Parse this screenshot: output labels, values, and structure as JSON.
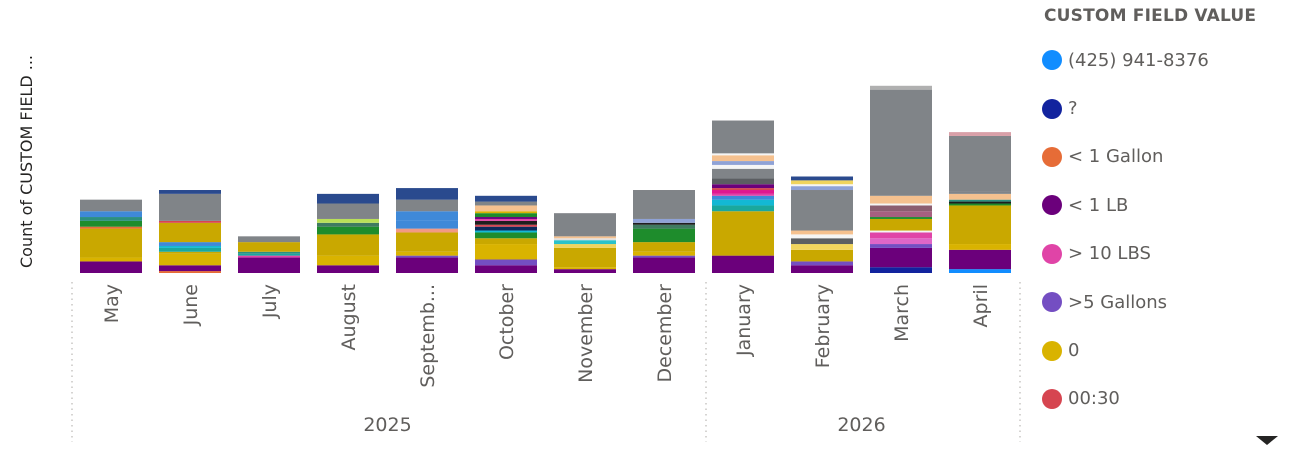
{
  "chart_data": {
    "type": "bar",
    "stacked": true,
    "ylabel": "Count of CUSTOM FIELD ...",
    "y_axis_labels_visible": false,
    "ylim": [
      0,
      100
    ],
    "gridlines": false,
    "categories": [
      "May",
      "June",
      "July",
      "August",
      "Septemb...",
      "October",
      "November",
      "December",
      "January",
      "February",
      "March",
      "April"
    ],
    "years": [
      {
        "label": "2025",
        "span": [
          0,
          7
        ]
      },
      {
        "label": "2026",
        "span": [
          8,
          11
        ]
      }
    ],
    "legend": {
      "title": "CUSTOM FIELD VALUE",
      "placement": "right",
      "entries": [
        {
          "name": "(425) 941-8376",
          "color": "#118DFF"
        },
        {
          "name": "?",
          "color": "#12239E"
        },
        {
          "name": "< 1 Gallon",
          "color": "#E66C37"
        },
        {
          "name": "< 1 LB",
          "color": "#6B007B"
        },
        {
          "name": "> 10 LBS",
          "color": "#E044A7"
        },
        {
          "name": ">5 Gallons",
          "color": "#744EC2"
        },
        {
          "name": "0",
          "color": "#D9B300"
        },
        {
          "name": "00:30",
          "color": "#D64550"
        }
      ]
    },
    "stacks": [
      [
        [
          6,
          "#6B007B"
        ],
        [
          2,
          "#D9B300"
        ],
        [
          15,
          "#C9A800"
        ],
        [
          1,
          "#E66C37"
        ],
        [
          3,
          "#1E8C2C"
        ],
        [
          2,
          "#2C8F80"
        ],
        [
          3,
          "#3F89D8"
        ],
        [
          6,
          "#808488"
        ]
      ],
      [
        [
          1,
          "#E66C37"
        ],
        [
          3,
          "#6B007B"
        ],
        [
          6,
          "#D9B300"
        ],
        [
          1,
          "#C9A800"
        ],
        [
          2,
          "#1AA89D"
        ],
        [
          1,
          "#13B8D4"
        ],
        [
          2,
          "#3F89D8"
        ],
        [
          10,
          "#C9A800"
        ],
        [
          1,
          "#D64550"
        ],
        [
          14,
          "#808488"
        ],
        [
          2,
          "#2A4A8E"
        ]
      ],
      [
        [
          8,
          "#6B007B"
        ],
        [
          1,
          "#E044A7"
        ],
        [
          1,
          "#1AA89D"
        ],
        [
          1,
          "#2C8F80"
        ],
        [
          5,
          "#C9A800"
        ],
        [
          3,
          "#808488"
        ]
      ],
      [
        [
          4,
          "#6B007B"
        ],
        [
          5,
          "#D9B300"
        ],
        [
          11,
          "#C9A800"
        ],
        [
          4,
          "#1E8C2C"
        ],
        [
          2,
          "#3F7A60"
        ],
        [
          2,
          "#B9E058"
        ],
        [
          8,
          "#808488"
        ],
        [
          5,
          "#2A4A8E"
        ]
      ],
      [
        [
          8,
          "#6B007B"
        ],
        [
          1,
          "#744EC2"
        ],
        [
          2,
          "#D9B300"
        ],
        [
          10,
          "#C9A800"
        ],
        [
          2,
          "#F29A84"
        ],
        [
          4,
          "#3F89D8"
        ],
        [
          5,
          "#3F89D8"
        ],
        [
          6,
          "#808488"
        ],
        [
          6,
          "#2A4A8E"
        ]
      ],
      [
        [
          4,
          "#6B007B"
        ],
        [
          3,
          "#744EC2"
        ],
        [
          8,
          "#D9B300"
        ],
        [
          3,
          "#C9A800"
        ],
        [
          3,
          "#1E8C2C"
        ],
        [
          1,
          "#13B8D4"
        ],
        [
          2,
          "#0B2A5C"
        ],
        [
          1,
          "#D64550"
        ],
        [
          2,
          "#1E1E1E"
        ],
        [
          1,
          "#E044A7"
        ],
        [
          1,
          "#6B007B"
        ],
        [
          2,
          "#1E8C2C"
        ],
        [
          1,
          "#D9B300"
        ],
        [
          3,
          "#F5C18F"
        ],
        [
          2,
          "#808488"
        ],
        [
          3,
          "#2A4A8E"
        ]
      ],
      [
        [
          2,
          "#6B007B"
        ],
        [
          1,
          "#D9B300"
        ],
        [
          10,
          "#C9A800"
        ],
        [
          2,
          "#F0D45E"
        ],
        [
          2,
          "#2CC2C9"
        ],
        [
          1,
          "#E0E0E0"
        ],
        [
          1,
          "#F5C18F"
        ],
        [
          12,
          "#808488"
        ]
      ],
      [
        [
          8,
          "#6B007B"
        ],
        [
          1,
          "#744EC2"
        ],
        [
          2,
          "#D9B300"
        ],
        [
          5,
          "#C9A800"
        ],
        [
          7,
          "#1E8C2C"
        ],
        [
          2,
          "#3F7A60"
        ],
        [
          1,
          "#1E1E1E"
        ],
        [
          2,
          "#8FA2D6"
        ],
        [
          15,
          "#808488"
        ]
      ],
      [
        [
          9,
          "#6B007B"
        ],
        [
          23,
          "#C9A800"
        ],
        [
          3,
          "#1AA89D"
        ],
        [
          3,
          "#13B8D4"
        ],
        [
          2,
          "#3F89D8"
        ],
        [
          1,
          "#E044A7"
        ],
        [
          2,
          "#E01890"
        ],
        [
          1,
          "#D64550"
        ],
        [
          2,
          "#6B007B"
        ],
        [
          3,
          "#5B5E62"
        ],
        [
          5,
          "#808488"
        ],
        [
          2,
          "#F5F5F5"
        ],
        [
          2,
          "#8FA2D6"
        ],
        [
          3,
          "#F5C18F"
        ],
        [
          1,
          "#F5F5F5"
        ],
        [
          17,
          "#808488"
        ]
      ],
      [
        [
          4,
          "#6B007B"
        ],
        [
          2,
          "#744EC2"
        ],
        [
          6,
          "#C9A800"
        ],
        [
          3,
          "#F0D45E"
        ],
        [
          3,
          "#5B5E62"
        ],
        [
          2,
          "#F5F5F5"
        ],
        [
          2,
          "#F5C18F"
        ],
        [
          21,
          "#808488"
        ],
        [
          2,
          "#8FA2D6"
        ],
        [
          1,
          "#F5F5F5"
        ],
        [
          2,
          "#F0D45E"
        ],
        [
          2,
          "#2A4A8E"
        ]
      ],
      [
        [
          3,
          "#12239E"
        ],
        [
          10,
          "#6B007B"
        ],
        [
          2,
          "#744EC2"
        ],
        [
          3,
          "#E066C7"
        ],
        [
          3,
          "#E044A7"
        ],
        [
          1,
          "#F5F5F5"
        ],
        [
          6,
          "#C9A800"
        ],
        [
          1,
          "#1E8C2C"
        ],
        [
          3,
          "#A76080"
        ],
        [
          3,
          "#8C5E70"
        ],
        [
          1,
          "#F5F5F5"
        ],
        [
          4,
          "#F5C18F"
        ],
        [
          55,
          "#808488"
        ],
        [
          2,
          "#B0B0B0"
        ]
      ],
      [
        [
          2,
          "#118DFF"
        ],
        [
          10,
          "#6B007B"
        ],
        [
          3,
          "#D9B300"
        ],
        [
          20,
          "#C9A800"
        ],
        [
          1,
          "#1E8C2C"
        ],
        [
          1,
          "#1E1E1E"
        ],
        [
          1,
          "#2C8F80"
        ],
        [
          3,
          "#F5C18F"
        ],
        [
          1,
          "#808488"
        ],
        [
          29,
          "#808488"
        ],
        [
          2,
          "#D9A0A8"
        ]
      ]
    ]
  }
}
